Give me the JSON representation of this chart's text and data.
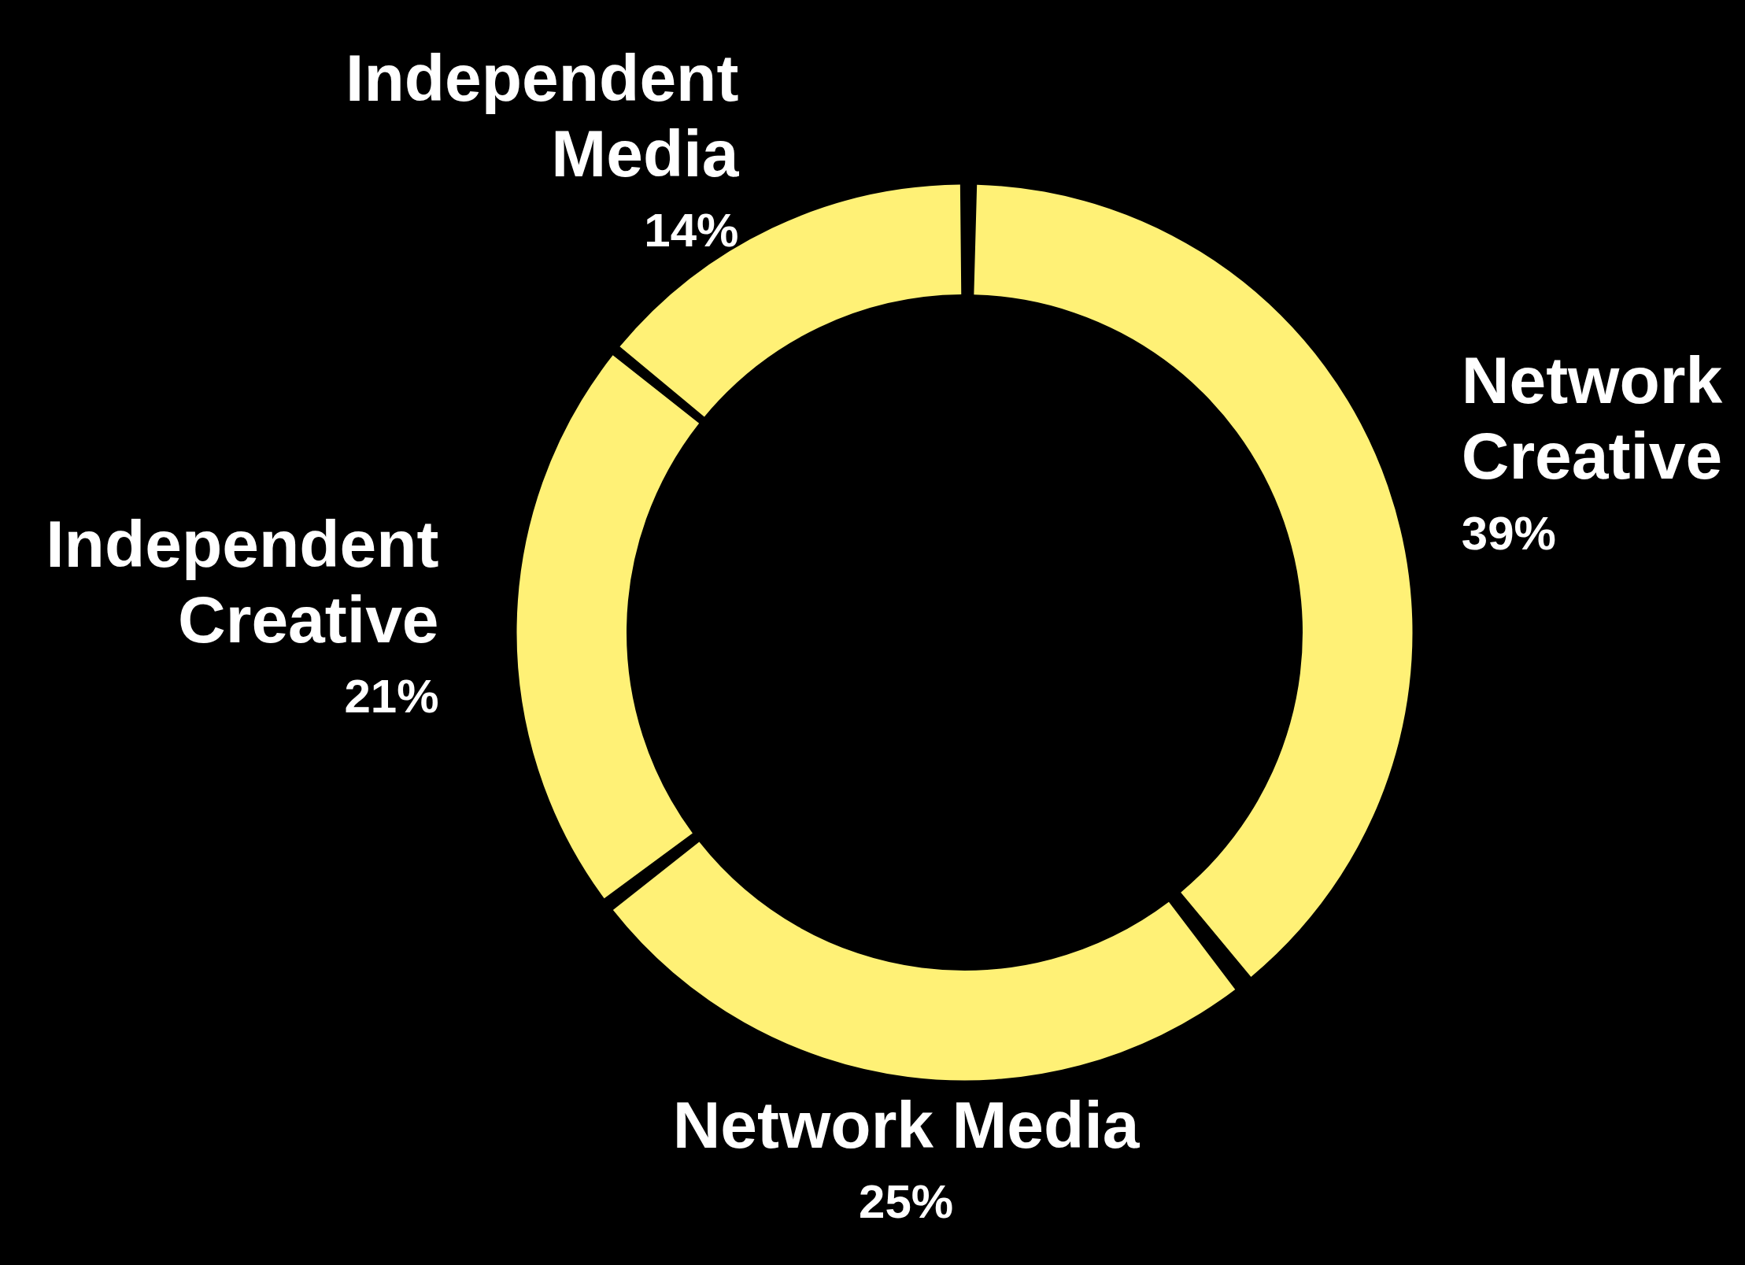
{
  "chart_data": {
    "type": "donut",
    "categories": [
      "Network Creative",
      "Network Media",
      "Independent Creative",
      "Independent Media"
    ],
    "values": [
      39,
      25,
      21,
      14
    ],
    "colors": [
      "#fff176",
      "#fff176",
      "#fff176",
      "#fff176"
    ],
    "value_labels": [
      "39%",
      "25%",
      "21%",
      "14%"
    ]
  }
}
